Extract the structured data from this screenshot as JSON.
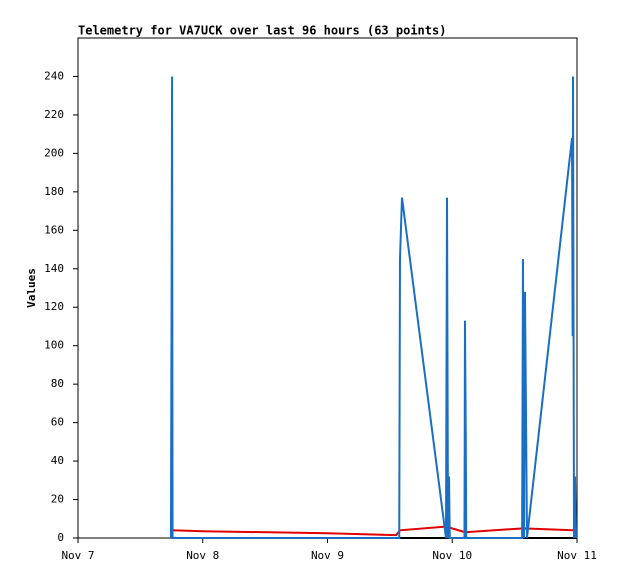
{
  "chart_data": {
    "type": "line",
    "title": "Telemetry for VA7UCK over last 96 hours (63 points)",
    "y_label": "Values",
    "xlim": [
      0,
      4
    ],
    "xticks": [
      {
        "value": 0,
        "label": "Nov 7"
      },
      {
        "value": 1,
        "label": "Nov 8"
      },
      {
        "value": 2,
        "label": "Nov 9"
      },
      {
        "value": 3,
        "label": "Nov 10"
      },
      {
        "value": 4,
        "label": "Nov 11"
      }
    ],
    "ylim": [
      0,
      260
    ],
    "yticks": [
      0,
      20,
      40,
      60,
      80,
      100,
      120,
      140,
      160,
      180,
      200,
      220,
      240
    ],
    "series": [
      {
        "color": "#000000",
        "x": [
          0.754,
          4.0
        ],
        "values": [
          0,
          0
        ]
      },
      {
        "color": "#e00000",
        "x": [
          0.754,
          1.0,
          2.0,
          2.55,
          2.581,
          2.958,
          3.0,
          3.102,
          3.567,
          3.968,
          4.0
        ],
        "values": [
          4,
          3.5,
          2.5,
          1.5,
          4,
          6,
          5,
          3,
          5,
          4,
          4
        ]
      },
      {
        "color": "#1a6fc4",
        "x": [
          0.745,
          0.75,
          0.754,
          0.758,
          2.575,
          2.581,
          2.597,
          2.95,
          2.958,
          2.966,
          2.974,
          2.98,
          3.098,
          3.102,
          3.108,
          3.112,
          3.56,
          3.567,
          3.575,
          3.583,
          3.591,
          3.599,
          3.96,
          3.965,
          3.968,
          3.976,
          3.984,
          3.992
        ],
        "values": [
          0,
          120,
          240,
          0,
          0,
          145,
          177,
          0,
          177,
          0,
          32,
          0,
          0,
          113,
          56,
          0,
          0,
          145,
          0,
          128,
          65,
          0,
          208,
          105,
          240,
          0,
          32,
          0
        ]
      }
    ]
  }
}
